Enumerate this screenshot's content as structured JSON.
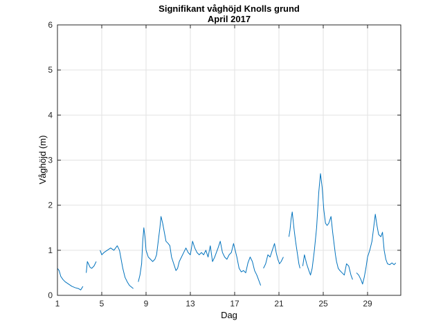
{
  "chart_data": {
    "type": "line",
    "title": "Signifikant våghöjd Knolls grund",
    "subtitle": "April 2017",
    "xlabel": "Dag",
    "ylabel": "Våghöjd (m)",
    "xlim": [
      1,
      32
    ],
    "ylim": [
      0,
      6
    ],
    "xticks": [
      "1",
      "5",
      "9",
      "13",
      "17",
      "21",
      "25",
      "29"
    ],
    "yticks": [
      "0",
      "1",
      "2",
      "3",
      "4",
      "5",
      "6"
    ],
    "grid": true,
    "line_color": "#0072BD",
    "series": [
      {
        "segments": [
          [
            [
              1.0,
              0.6
            ],
            [
              1.15,
              0.55
            ],
            [
              1.3,
              0.42
            ],
            [
              1.5,
              0.35
            ],
            [
              1.7,
              0.3
            ],
            [
              2.0,
              0.25
            ],
            [
              2.3,
              0.2
            ],
            [
              2.6,
              0.17
            ],
            [
              2.9,
              0.15
            ],
            [
              3.1,
              0.12
            ],
            [
              3.3,
              0.2
            ]
          ],
          [
            [
              3.6,
              0.5
            ],
            [
              3.7,
              0.75
            ],
            [
              3.8,
              0.7
            ],
            [
              3.95,
              0.62
            ],
            [
              4.1,
              0.6
            ],
            [
              4.3,
              0.65
            ],
            [
              4.5,
              0.75
            ]
          ],
          [
            [
              4.85,
              1.0
            ],
            [
              5.0,
              0.9
            ],
            [
              5.2,
              0.95
            ],
            [
              5.5,
              1.0
            ],
            [
              5.8,
              1.05
            ],
            [
              6.1,
              1.0
            ],
            [
              6.4,
              1.1
            ],
            [
              6.6,
              1.0
            ],
            [
              6.75,
              0.8
            ],
            [
              6.9,
              0.6
            ],
            [
              7.1,
              0.4
            ],
            [
              7.3,
              0.3
            ],
            [
              7.5,
              0.22
            ],
            [
              7.7,
              0.18
            ],
            [
              7.85,
              0.15
            ]
          ],
          [
            [
              8.3,
              0.3
            ],
            [
              8.45,
              0.45
            ],
            [
              8.6,
              0.7
            ],
            [
              8.7,
              1.2
            ],
            [
              8.8,
              1.5
            ],
            [
              8.9,
              1.3
            ],
            [
              9.0,
              1.0
            ],
            [
              9.2,
              0.85
            ],
            [
              9.4,
              0.8
            ],
            [
              9.6,
              0.75
            ],
            [
              9.8,
              0.8
            ],
            [
              9.95,
              0.9
            ],
            [
              10.1,
              1.2
            ],
            [
              10.25,
              1.5
            ],
            [
              10.35,
              1.75
            ],
            [
              10.5,
              1.6
            ],
            [
              10.65,
              1.4
            ],
            [
              10.8,
              1.2
            ],
            [
              11.0,
              1.15
            ],
            [
              11.15,
              1.1
            ],
            [
              11.3,
              0.85
            ],
            [
              11.5,
              0.7
            ],
            [
              11.7,
              0.55
            ],
            [
              11.85,
              0.6
            ],
            [
              12.0,
              0.75
            ],
            [
              12.2,
              0.85
            ],
            [
              12.4,
              0.95
            ],
            [
              12.6,
              1.05
            ],
            [
              12.8,
              0.95
            ],
            [
              13.0,
              0.9
            ],
            [
              13.2,
              1.2
            ],
            [
              13.4,
              1.05
            ],
            [
              13.6,
              0.95
            ],
            [
              13.8,
              0.9
            ],
            [
              14.0,
              0.95
            ],
            [
              14.2,
              0.9
            ],
            [
              14.4,
              1.0
            ],
            [
              14.6,
              0.85
            ],
            [
              14.8,
              1.1
            ],
            [
              15.0,
              0.75
            ],
            [
              15.2,
              0.85
            ],
            [
              15.5,
              1.05
            ],
            [
              15.7,
              1.2
            ],
            [
              15.9,
              0.95
            ],
            [
              16.1,
              0.85
            ],
            [
              16.3,
              0.8
            ],
            [
              16.5,
              0.9
            ],
            [
              16.7,
              0.95
            ],
            [
              16.9,
              1.15
            ],
            [
              17.0,
              1.05
            ],
            [
              17.2,
              0.85
            ],
            [
              17.4,
              0.6
            ],
            [
              17.6,
              0.52
            ],
            [
              17.8,
              0.55
            ],
            [
              18.0,
              0.5
            ],
            [
              18.2,
              0.72
            ],
            [
              18.4,
              0.85
            ],
            [
              18.6,
              0.75
            ],
            [
              18.8,
              0.55
            ],
            [
              19.0,
              0.45
            ],
            [
              19.2,
              0.32
            ],
            [
              19.35,
              0.22
            ]
          ],
          [
            [
              19.6,
              0.6
            ],
            [
              19.8,
              0.7
            ],
            [
              20.0,
              0.9
            ],
            [
              20.2,
              0.85
            ],
            [
              20.4,
              1.0
            ],
            [
              20.6,
              1.15
            ],
            [
              20.75,
              0.95
            ],
            [
              20.9,
              0.8
            ],
            [
              21.05,
              0.7
            ],
            [
              21.2,
              0.75
            ],
            [
              21.4,
              0.85
            ]
          ],
          [
            [
              21.9,
              1.3
            ],
            [
              22.0,
              1.45
            ],
            [
              22.1,
              1.7
            ],
            [
              22.2,
              1.85
            ],
            [
              22.35,
              1.5
            ],
            [
              22.5,
              1.2
            ],
            [
              22.65,
              0.95
            ],
            [
              22.8,
              0.7
            ],
            [
              22.9,
              0.6
            ]
          ],
          [
            [
              23.15,
              0.65
            ],
            [
              23.3,
              0.9
            ],
            [
              23.5,
              0.7
            ],
            [
              23.7,
              0.55
            ],
            [
              23.85,
              0.45
            ],
            [
              24.0,
              0.6
            ],
            [
              24.2,
              1.0
            ],
            [
              24.4,
              1.5
            ],
            [
              24.6,
              2.3
            ],
            [
              24.75,
              2.7
            ],
            [
              24.9,
              2.4
            ],
            [
              25.05,
              1.9
            ],
            [
              25.2,
              1.6
            ],
            [
              25.35,
              1.55
            ],
            [
              25.5,
              1.6
            ],
            [
              25.7,
              1.75
            ],
            [
              25.85,
              1.4
            ],
            [
              26.0,
              1.1
            ],
            [
              26.1,
              0.9
            ],
            [
              26.2,
              0.75
            ],
            [
              26.35,
              0.6
            ],
            [
              26.5,
              0.55
            ],
            [
              26.7,
              0.5
            ],
            [
              26.9,
              0.45
            ],
            [
              27.1,
              0.7
            ],
            [
              27.3,
              0.65
            ],
            [
              27.5,
              0.45
            ],
            [
              27.65,
              0.35
            ]
          ],
          [
            [
              28.0,
              0.5
            ],
            [
              28.2,
              0.45
            ],
            [
              28.4,
              0.35
            ],
            [
              28.55,
              0.25
            ],
            [
              28.7,
              0.4
            ],
            [
              28.85,
              0.6
            ],
            [
              29.0,
              0.85
            ],
            [
              29.2,
              1.0
            ],
            [
              29.4,
              1.2
            ],
            [
              29.55,
              1.5
            ],
            [
              29.7,
              1.8
            ],
            [
              29.85,
              1.55
            ],
            [
              30.0,
              1.35
            ],
            [
              30.2,
              1.3
            ],
            [
              30.35,
              1.4
            ],
            [
              30.5,
              1.0
            ],
            [
              30.65,
              0.8
            ],
            [
              30.8,
              0.7
            ],
            [
              31.0,
              0.68
            ],
            [
              31.2,
              0.72
            ],
            [
              31.4,
              0.68
            ],
            [
              31.55,
              0.72
            ]
          ]
        ]
      }
    ]
  }
}
